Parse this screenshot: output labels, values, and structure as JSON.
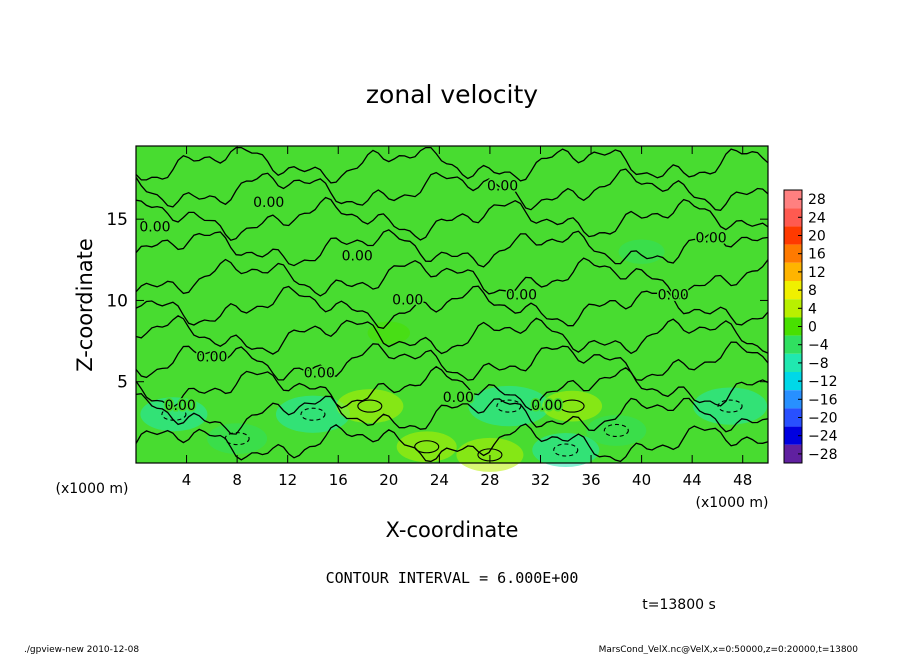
{
  "chart_data": {
    "type": "heatmap",
    "title": "zonal velocity",
    "xlabel": "X-coordinate",
    "ylabel": "Z-coordinate",
    "x_unit_left": "(x1000 m)",
    "x_unit_right": "(x1000 m)",
    "xlim": [
      0,
      50
    ],
    "ylim": [
      0,
      19.5
    ],
    "xticks": [
      4,
      8,
      12,
      16,
      20,
      24,
      28,
      32,
      36,
      40,
      44,
      48
    ],
    "yticks": [
      5,
      10,
      15
    ],
    "contour_interval_text": "CONTOUR INTERVAL = 6.000E+00",
    "contour_label": "0.00",
    "contour_labels": [
      {
        "x": 10.5,
        "z": 16.0
      },
      {
        "x": 29.0,
        "z": 17.0
      },
      {
        "x": 1.5,
        "z": 14.5
      },
      {
        "x": 17.5,
        "z": 12.7
      },
      {
        "x": 45.5,
        "z": 13.8
      },
      {
        "x": 21.5,
        "z": 10.0
      },
      {
        "x": 30.5,
        "z": 10.3
      },
      {
        "x": 42.5,
        "z": 10.3
      },
      {
        "x": 6.0,
        "z": 6.5
      },
      {
        "x": 14.5,
        "z": 5.5
      },
      {
        "x": 3.5,
        "z": 3.5
      },
      {
        "x": 25.5,
        "z": 4.0
      },
      {
        "x": 32.5,
        "z": 3.5
      }
    ],
    "field_anomalies": [
      {
        "x": 3.0,
        "z": 3.0,
        "value": -5
      },
      {
        "x": 8.0,
        "z": 1.5,
        "value": -4
      },
      {
        "x": 14.0,
        "z": 3.0,
        "value": -6
      },
      {
        "x": 18.5,
        "z": 3.5,
        "value": 5
      },
      {
        "x": 23.0,
        "z": 1.0,
        "value": 4
      },
      {
        "x": 29.5,
        "z": 3.5,
        "value": -7
      },
      {
        "x": 34.0,
        "z": 0.8,
        "value": -5
      },
      {
        "x": 34.5,
        "z": 3.5,
        "value": 4
      },
      {
        "x": 38.0,
        "z": 2.0,
        "value": -4
      },
      {
        "x": 47.0,
        "z": 3.5,
        "value": -6
      },
      {
        "x": 28.0,
        "z": 0.5,
        "value": 5
      },
      {
        "x": 40.0,
        "z": 13.0,
        "value": -2
      },
      {
        "x": 20.0,
        "z": 8.0,
        "value": 1.5
      }
    ],
    "colorbar": {
      "labels": [
        "28",
        "24",
        "20",
        "16",
        "12",
        "8",
        "4",
        "0",
        "−4",
        "−8",
        "−12",
        "−16",
        "−20",
        "−24",
        "−28"
      ],
      "values": [
        28,
        24,
        20,
        16,
        12,
        8,
        4,
        0,
        -4,
        -8,
        -12,
        -16,
        -20,
        -24,
        -28
      ],
      "colors": [
        "#ff8080",
        "#ff5a50",
        "#ff3a00",
        "#ff7a00",
        "#ffb400",
        "#f0f000",
        "#b8f000",
        "#48e000",
        "#30e060",
        "#20e8b0",
        "#00d8e8",
        "#2890ff",
        "#2850ff",
        "#0000e0",
        "#6020a0"
      ]
    },
    "time_text": "t=13800 s",
    "footer_left": "./gpview-new  2010-12-08",
    "footer_right": "MarsCond_VelX.nc@VelX,x=0:50000,z=0:20000,t=13800"
  }
}
